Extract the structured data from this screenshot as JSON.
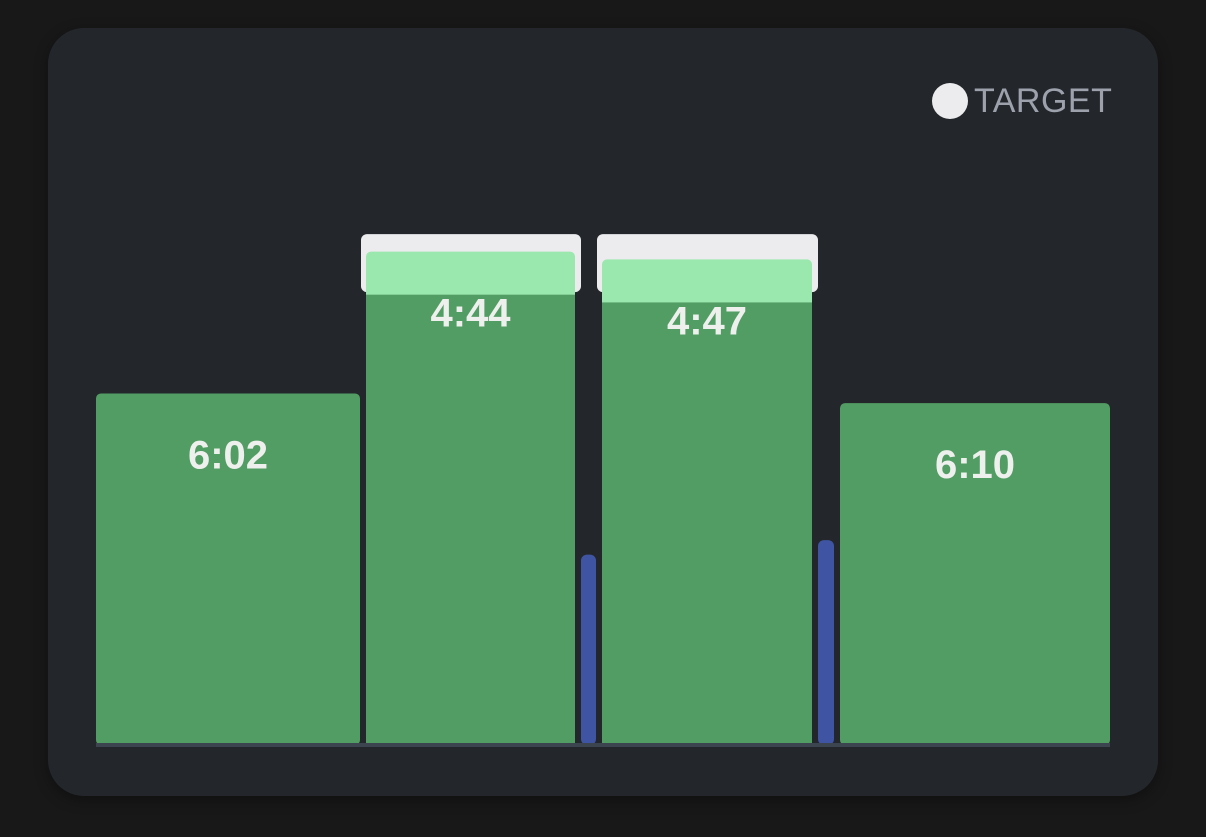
{
  "legend": {
    "label": "TARGET",
    "icon": "circle-dot-icon",
    "color": "#ececee"
  },
  "colors": {
    "card": "#23272c",
    "bar": "#529d63",
    "bar_highlight": "#9be8ae",
    "target": "#ececee",
    "gap": "#3f55a3",
    "baseline": "#3c4450"
  },
  "chart_data": {
    "type": "bar",
    "value_unit": "min:sec",
    "ylim": [
      0,
      520
    ],
    "bars": [
      {
        "label": "6:02",
        "value": 362
      },
      {
        "label": "4:44",
        "value": 508,
        "target": 526,
        "highlighted": true
      },
      {
        "label": "4:47",
        "value": 500,
        "target": 526,
        "highlighted": true
      },
      {
        "label": "6:10",
        "value": 352
      }
    ],
    "separators": [
      {
        "value": 196
      },
      {
        "value": 211
      }
    ]
  }
}
